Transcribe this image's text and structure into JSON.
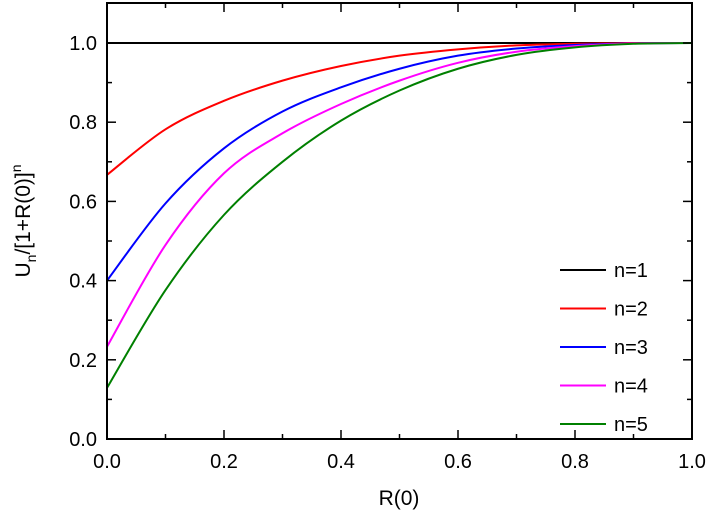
{
  "chart_data": {
    "type": "line",
    "title": "",
    "xlabel": "R(0)",
    "ylabel": {
      "base": "U",
      "sub": "n",
      "mid": "/[1+R(0)]",
      "sup": "n"
    },
    "xlim": [
      0,
      1.0
    ],
    "ylim": [
      0,
      1.1
    ],
    "xticks": [
      "0.0",
      "0.2",
      "0.4",
      "0.6",
      "0.8",
      "1.0"
    ],
    "yticks": [
      "0.0",
      "0.2",
      "0.4",
      "0.6",
      "0.8",
      "1.0"
    ],
    "grid": false,
    "legend_position": "bottom-right",
    "x": [
      0,
      0.1,
      0.2,
      0.3,
      0.4,
      0.5,
      0.6,
      0.7,
      0.8,
      0.9,
      1.0
    ],
    "series": [
      {
        "name": "n=1",
        "color": "#000000",
        "values": [
          1,
          1,
          1,
          1,
          1,
          1,
          1,
          1,
          1,
          1,
          1
        ]
      },
      {
        "name": "n=2",
        "color": "#ff0000",
        "values": [
          0.667,
          0.782,
          0.854,
          0.905,
          0.942,
          0.968,
          0.984,
          0.994,
          0.998,
          1.0,
          1.0
        ]
      },
      {
        "name": "n=3",
        "color": "#0000ff",
        "values": [
          0.4,
          0.595,
          0.734,
          0.827,
          0.888,
          0.935,
          0.968,
          0.986,
          0.995,
          0.999,
          1.0
        ]
      },
      {
        "name": "n=4",
        "color": "#ff00ff",
        "values": [
          0.233,
          0.49,
          0.671,
          0.772,
          0.846,
          0.905,
          0.95,
          0.978,
          0.992,
          0.999,
          1.0
        ]
      },
      {
        "name": "n=5",
        "color": "#008000",
        "values": [
          0.129,
          0.376,
          0.566,
          0.7,
          0.804,
          0.88,
          0.935,
          0.97,
          0.989,
          0.998,
          1.0
        ]
      }
    ]
  }
}
